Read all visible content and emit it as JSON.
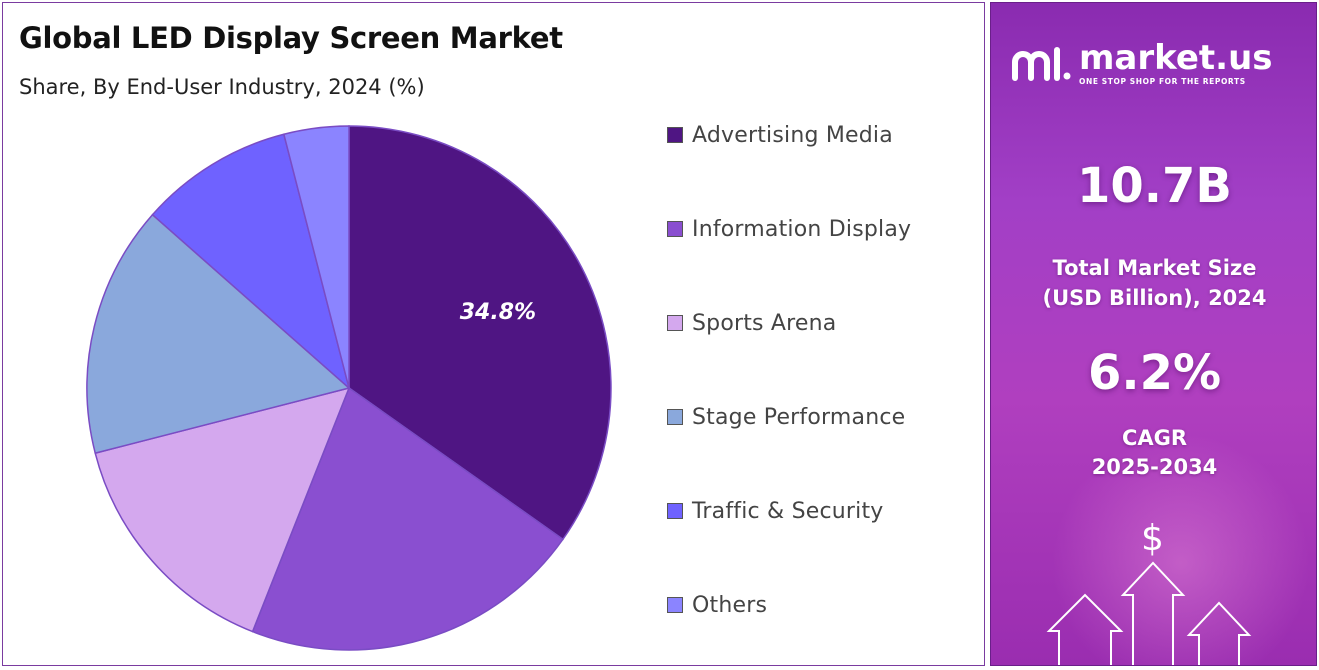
{
  "title": "Global LED Display Screen Market",
  "subtitle": "Share, By End-User Industry, 2024 (%)",
  "chart_data": {
    "type": "pie",
    "categories": [
      "Advertising Media",
      "Information Display",
      "Sports Arena",
      "Stage Performance",
      "Traffic & Security",
      "Others"
    ],
    "values": [
      34.8,
      21.2,
      15.0,
      15.5,
      9.5,
      4.0
    ],
    "colors": [
      "#4f1583",
      "#8a4fd0",
      "#d4a8ee",
      "#8aa8dc",
      "#6f62ff",
      "#8b84ff"
    ],
    "data_labels": [
      "34.8%",
      "",
      "",
      "",
      "",
      ""
    ],
    "legend_position": "right"
  },
  "side_panel": {
    "logo_name": "market.us",
    "logo_tagline": "ONE STOP SHOP FOR THE REPORTS",
    "market_size_value": "10.7B",
    "market_size_label_line1": "Total Market Size",
    "market_size_label_line2": "(USD Billion), 2024",
    "cagr_value": "6.2%",
    "cagr_label_line1": "CAGR",
    "cagr_label_line2": "2025-2034",
    "dollar_symbol": "$",
    "logo_icon": "market-us-logo-icon",
    "decor_icon": "growth-arrows-icon"
  }
}
